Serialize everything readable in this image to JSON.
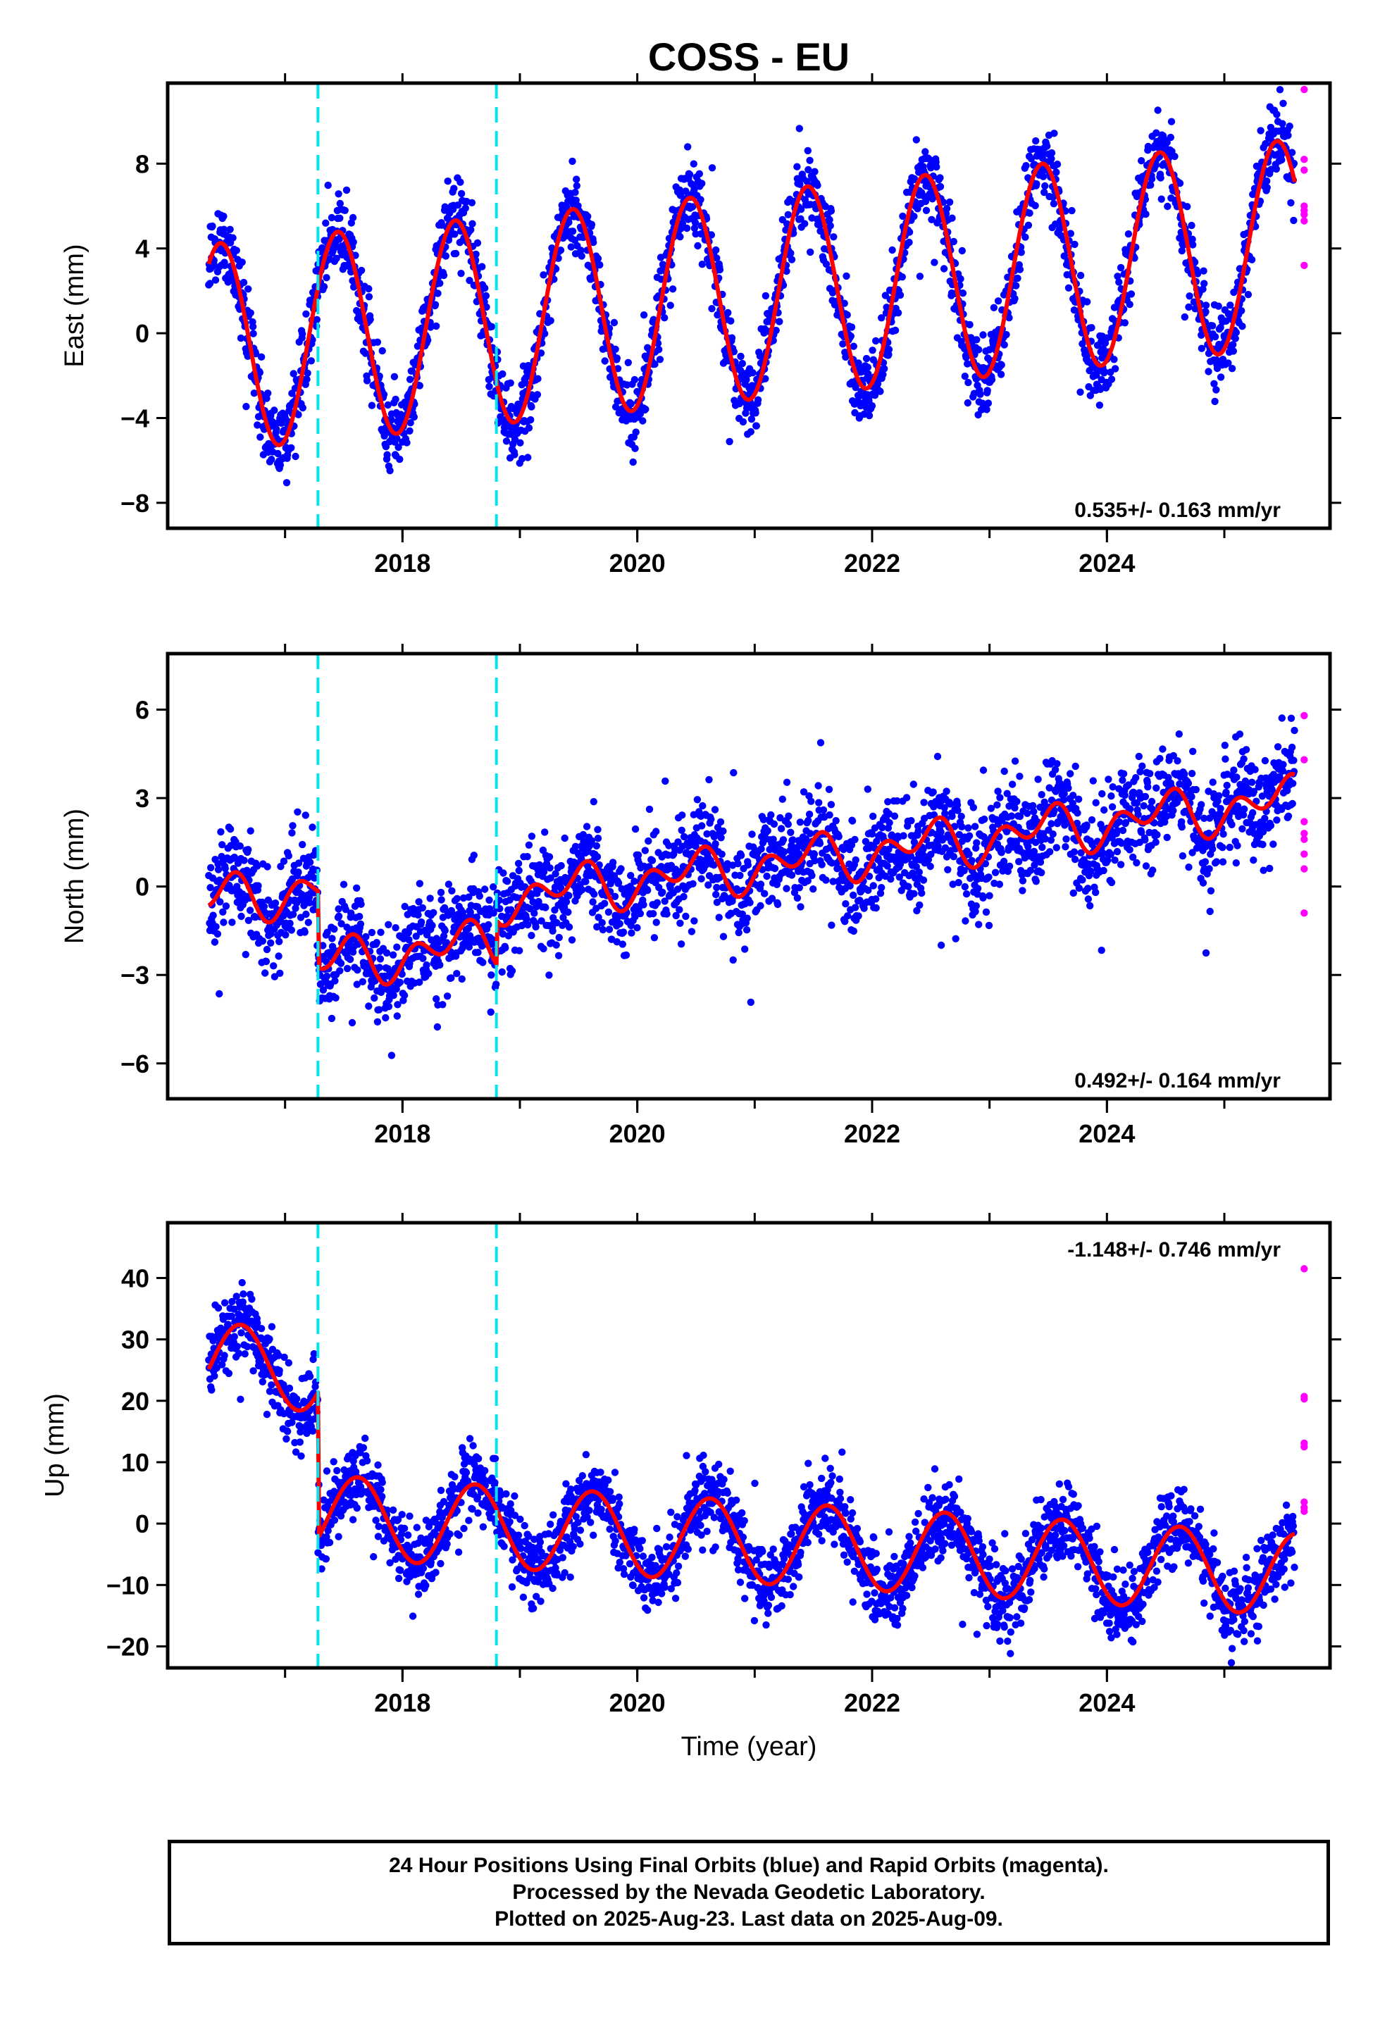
{
  "title": "COSS - EU",
  "footer": {
    "line1": "24 Hour Positions Using Final Orbits (blue) and Rapid Orbits (magenta).",
    "line2": "Processed by the Nevada Geodetic Laboratory.",
    "line3": "Plotted on 2025-Aug-23. Last data on 2025-Aug-09."
  },
  "colors": {
    "final": "#0000ff",
    "rapid": "#ff00ff",
    "model": "#ff0000",
    "steps": "#00e5ee"
  },
  "chart_data": [
    {
      "type": "scatter",
      "component": "east",
      "ylabel": "East (mm)",
      "xlabel": "",
      "xlim": [
        2016.0,
        2025.9
      ],
      "ylim": [
        -9.2,
        11.8
      ],
      "yticks": [
        -8,
        -4,
        0,
        4,
        8
      ],
      "xticks": [
        2018,
        2020,
        2022,
        2024
      ],
      "xtick_labels": [
        "2018",
        "2020",
        "2022",
        "2024"
      ],
      "rate": "0.535+/- 0.163 mm/yr",
      "rate_position": "bottom-right",
      "data_start": 2016.35,
      "data_end": 2025.6,
      "steps": [
        2017.28,
        2018.8
      ],
      "model": {
        "offset": -0.7,
        "trend": 0.535,
        "annual_amplitude": 4.9,
        "annual_peak": 0.45,
        "semiannual_amplitude": 0.0,
        "semiannual_peak": 0.0,
        "step_offsets": [
          0,
          0
        ]
      },
      "scatter_noise": 0.9,
      "rapid_values": [
        11.5,
        8.2,
        7.7,
        6.0,
        5.8,
        5.6,
        5.3,
        3.2
      ],
      "rapid_x": 2025.68
    },
    {
      "type": "scatter",
      "component": "north",
      "ylabel": "North (mm)",
      "xlabel": "",
      "xlim": [
        2016.0,
        2025.9
      ],
      "ylim": [
        -7.2,
        7.9
      ],
      "yticks": [
        -6,
        -3,
        0,
        3,
        6
      ],
      "xticks": [
        2018,
        2020,
        2022,
        2024
      ],
      "xtick_labels": [
        "2018",
        "2020",
        "2022",
        "2024"
      ],
      "rate": "0.492+/- 0.164 mm/yr",
      "rate_position": "bottom-right",
      "data_start": 2016.35,
      "data_end": 2025.6,
      "steps": [
        2017.28,
        2018.8
      ],
      "model": {
        "offset": -0.5,
        "trend": 0.492,
        "annual_amplitude": 0.5,
        "annual_peak": 0.45,
        "semiannual_amplitude": 0.55,
        "semiannual_peak": 0.1,
        "step_offsets": [
          -2.6,
          1.5
        ]
      },
      "scatter_noise": 0.85,
      "rapid_values": [
        5.8,
        4.3,
        2.2,
        1.8,
        1.6,
        1.1,
        0.6,
        -0.9
      ],
      "rapid_x": 2025.68
    },
    {
      "type": "scatter",
      "component": "up",
      "ylabel": "Up (mm)",
      "xlabel": "Time (year)",
      "xlim": [
        2016.0,
        2025.9
      ],
      "ylim": [
        -23.5,
        49.0
      ],
      "yticks": [
        -20,
        -10,
        0,
        10,
        20,
        30,
        40
      ],
      "xticks": [
        2018,
        2020,
        2022,
        2024
      ],
      "xtick_labels": [
        "2018",
        "2020",
        "2022",
        "2024"
      ],
      "rate": "-1.148+/- 0.746 mm/yr",
      "rate_position": "top-right",
      "data_start": 2016.35,
      "data_end": 2025.6,
      "steps": [
        2017.28,
        2018.8
      ],
      "model": {
        "offset": 26.0,
        "trend": -1.148,
        "annual_amplitude": 6.7,
        "annual_peak": 0.62,
        "semiannual_amplitude": 0.0,
        "semiannual_peak": 0.0,
        "step_offsets": [
          -23.7,
          0
        ]
      },
      "scatter_noise": 3.0,
      "rapid_values": [
        41.5,
        20.7,
        20.3,
        13.1,
        12.5,
        3.5,
        2.6,
        2.0
      ],
      "rapid_x": 2025.68
    }
  ]
}
